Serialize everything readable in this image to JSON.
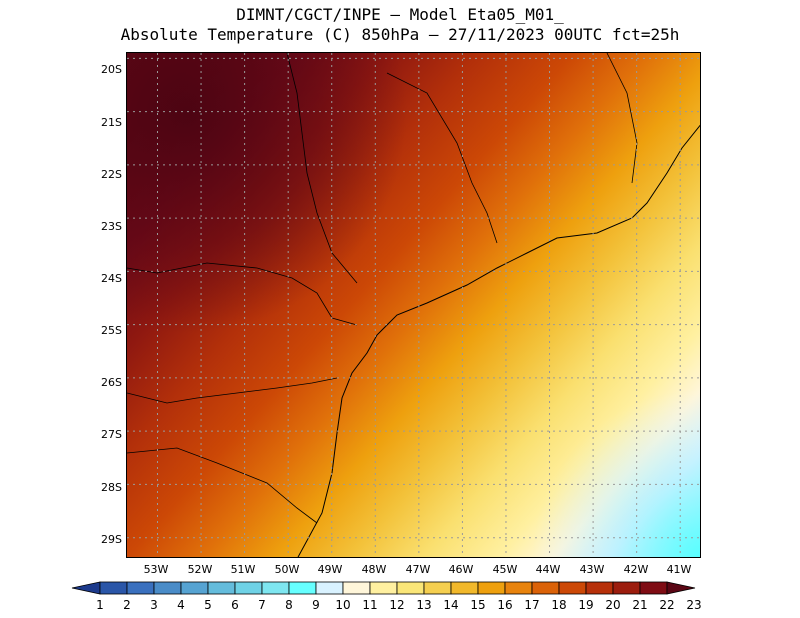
{
  "title": {
    "line1": "DIMNT/CGCT/INPE —  Model Eta05_M01_",
    "line2": "Absolute Temperature (C) 850hPa —  27/11/2023 00UTC fct=25h"
  },
  "axes": {
    "lat_labels": [
      "20S",
      "21S",
      "22S",
      "23S",
      "24S",
      "25S",
      "26S",
      "27S",
      "28S",
      "29S"
    ],
    "lon_labels": [
      "53W",
      "52W",
      "51W",
      "50W",
      "49W",
      "48W",
      "47W",
      "46W",
      "45W",
      "44W",
      "43W",
      "42W",
      "41W"
    ],
    "lon_range": [
      -53.7,
      -40.5
    ],
    "lat_range": [
      -29.4,
      -19.9
    ],
    "grid": "dotted"
  },
  "colorbar": {
    "labels": [
      "1",
      "2",
      "3",
      "4",
      "5",
      "6",
      "7",
      "8",
      "9",
      "10",
      "11",
      "12",
      "13",
      "14",
      "15",
      "16",
      "17",
      "18",
      "19",
      "20",
      "21",
      "22",
      "23"
    ],
    "colors": [
      "#1c3a8c",
      "#2a56a8",
      "#3a70be",
      "#4a8cc8",
      "#56a3d2",
      "#64bcdc",
      "#6fd2e6",
      "#7ee6f0",
      "#66ffff",
      "#d9f2ff",
      "#fff6da",
      "#fff0a0",
      "#fae678",
      "#f5cf50",
      "#f1b82b",
      "#eea00e",
      "#e8830d",
      "#db6208",
      "#cc4806",
      "#b7300a",
      "#9c1d0e",
      "#7f0c14",
      "#5a0614"
    ],
    "units": "C"
  },
  "map_data": {
    "field": "temperature_850hPa",
    "spatial_pattern": "hottest (22-23) inland northwest of domain, decreasing toward the southeast over the Atlantic (10-11)"
  }
}
